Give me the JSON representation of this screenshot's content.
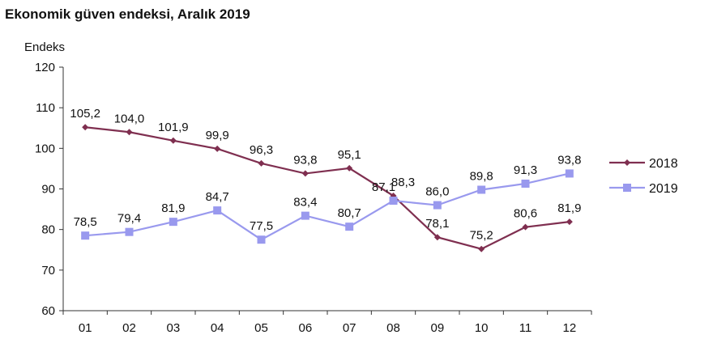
{
  "chart_data": {
    "type": "line",
    "title": "Ekonomik güven endeksi, Aralık 2019",
    "ylabel": "Endeks",
    "xlabel": "",
    "categories": [
      "01",
      "02",
      "03",
      "04",
      "05",
      "06",
      "07",
      "08",
      "09",
      "10",
      "11",
      "12"
    ],
    "ylim": [
      60,
      120
    ],
    "yticks": [
      60,
      70,
      80,
      90,
      100,
      110,
      120
    ],
    "grid": false,
    "legend": "right",
    "series": [
      {
        "name": "2018",
        "color": "#7f2f50",
        "marker": "diamond",
        "values": [
          105.2,
          104.0,
          101.9,
          99.9,
          96.3,
          93.8,
          95.1,
          88.3,
          78.1,
          75.2,
          80.6,
          81.9
        ],
        "labels": [
          "105,2",
          "104,0",
          "101,9",
          "99,9",
          "96,3",
          "93,8",
          "95,1",
          "88,3",
          "78,1",
          "75,2",
          "80,6",
          "81,9"
        ]
      },
      {
        "name": "2019",
        "color": "#9999ee",
        "marker": "square",
        "values": [
          78.5,
          79.4,
          81.9,
          84.7,
          77.5,
          83.4,
          80.7,
          87.1,
          86.0,
          89.8,
          91.3,
          93.8
        ],
        "labels": [
          "78,5",
          "79,4",
          "81,9",
          "84,7",
          "77,5",
          "83,4",
          "80,7",
          "87,1",
          "86,0",
          "89,8",
          "91,3",
          "93,8"
        ]
      }
    ]
  }
}
